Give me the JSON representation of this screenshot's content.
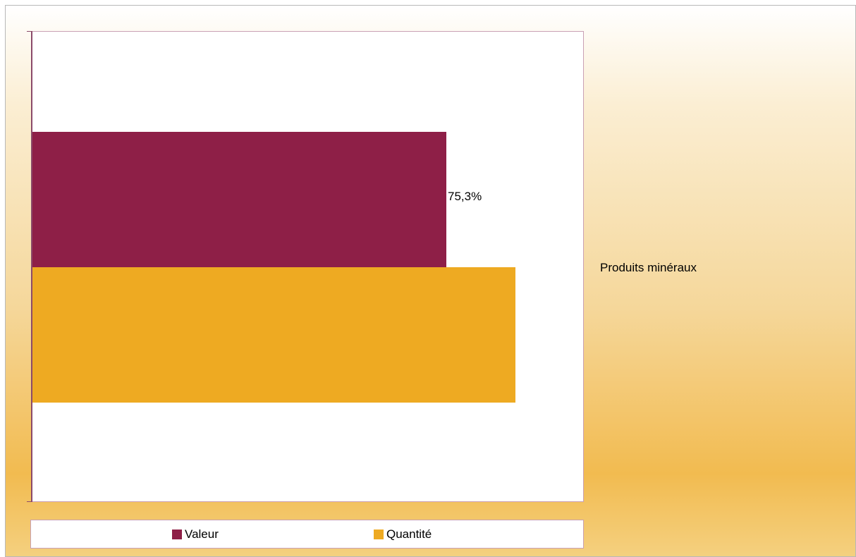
{
  "chart_data": {
    "type": "bar",
    "orientation": "horizontal",
    "categories": [
      "Produits minéraux"
    ],
    "series": [
      {
        "name": "Valeur",
        "values": [
          75.3
        ],
        "color": "#8e1f47",
        "label": "75,3%"
      },
      {
        "name": "Quantité",
        "values": [
          87.8
        ],
        "color": "#eeaa22"
      }
    ],
    "xlim": [
      0,
      100
    ],
    "grid": false,
    "legend_position": "bottom"
  }
}
